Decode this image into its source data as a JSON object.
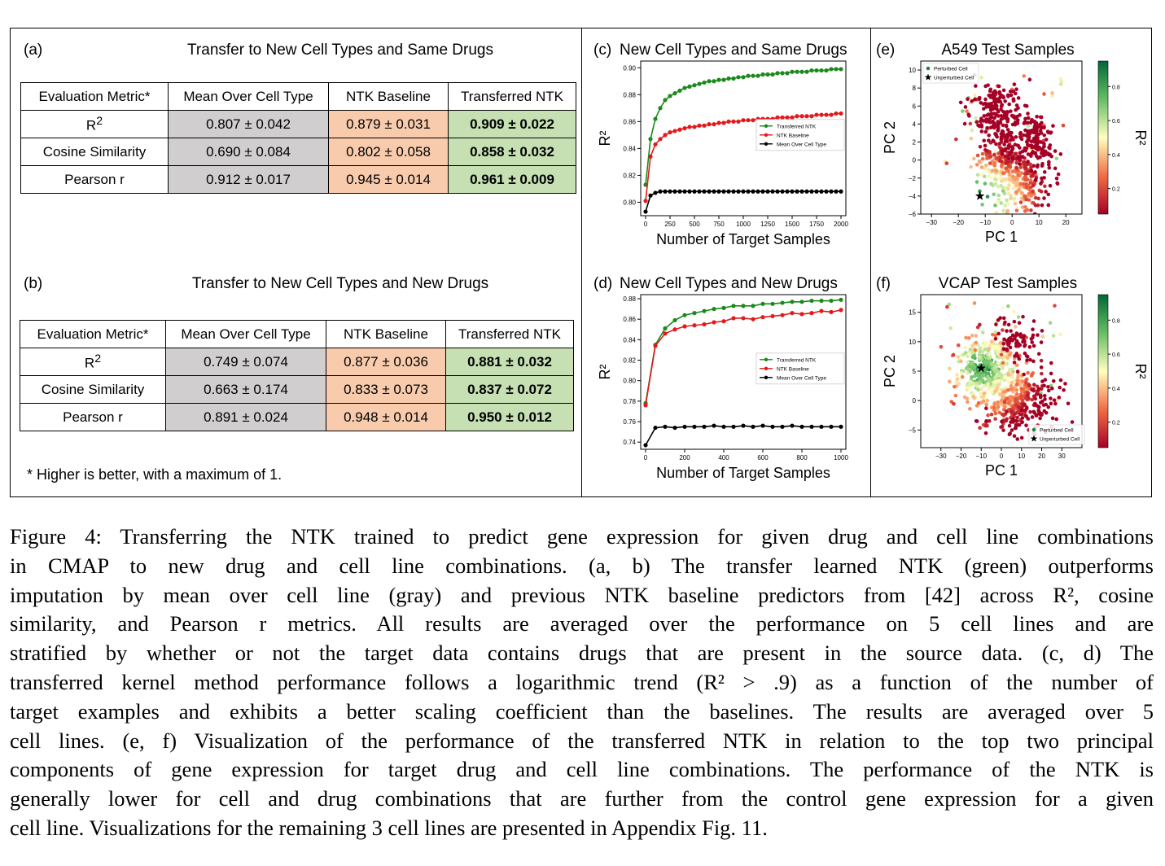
{
  "panels": {
    "a": {
      "label": "(a)",
      "title": "Transfer to New Cell Types and Same Drugs",
      "headers": [
        "Evaluation Metric*",
        "Mean Over Cell Type",
        "NTK Baseline",
        "Transferred NTK"
      ],
      "rows": [
        {
          "metric": "R",
          "sup": "2",
          "mean": "0.807 ± 0.042",
          "baseline": "0.879 ± 0.031",
          "transferred": "0.909 ± 0.022"
        },
        {
          "metric": "Cosine Similarity",
          "sup": "",
          "mean": "0.690 ± 0.084",
          "baseline": "0.802 ± 0.058",
          "transferred": "0.858 ± 0.032"
        },
        {
          "metric": "Pearson r",
          "sup": "",
          "mean": "0.912 ± 0.017",
          "baseline": "0.945 ± 0.014",
          "transferred": "0.961 ± 0.009"
        }
      ]
    },
    "b": {
      "label": "(b)",
      "title": "Transfer to New Cell Types and New Drugs",
      "headers": [
        "Evaluation Metric*",
        "Mean Over Cell Type",
        "NTK Baseline",
        "Transferred NTK"
      ],
      "rows": [
        {
          "metric": "R",
          "sup": "2",
          "mean": "0.749 ± 0.074",
          "baseline": "0.877 ± 0.036",
          "transferred": "0.881 ± 0.032"
        },
        {
          "metric": "Cosine Similarity",
          "sup": "",
          "mean": "0.663 ± 0.174",
          "baseline": "0.833 ± 0.073",
          "transferred": "0.837 ± 0.072"
        },
        {
          "metric": "Pearson r",
          "sup": "",
          "mean": "0.891 ± 0.024",
          "baseline": "0.948 ± 0.014",
          "transferred": "0.950 ± 0.012"
        }
      ],
      "footnote": "* Higher is better, with a maximum of 1."
    },
    "c": {
      "label": "(c)",
      "title": "New Cell Types and Same Drugs"
    },
    "d": {
      "label": "(d)",
      "title": "New Cell Types and New Drugs"
    },
    "e": {
      "label": "(e)",
      "title": "A549 Test Samples"
    },
    "f": {
      "label": "(f)",
      "title": "VCAP Test Samples"
    }
  },
  "colors": {
    "gray_cell": "#d0cece",
    "orange_cell": "#f8cbad",
    "green_cell": "#c6e0b4",
    "transferred_line": "#1a8a1a",
    "baseline_line": "#e31a1c",
    "mean_line": "#000000"
  },
  "chart_data": [
    {
      "id": "c",
      "type": "line",
      "xlabel": "Number of Target Samples",
      "ylabel": "R²",
      "xlim": [
        -50,
        2050
      ],
      "ylim": [
        0.79,
        0.905
      ],
      "xticks": [
        0,
        250,
        500,
        750,
        1000,
        1250,
        1500,
        1750,
        2000
      ],
      "yticks": [
        0.8,
        0.82,
        0.84,
        0.86,
        0.88,
        0.9
      ],
      "ytick_labels": [
        "0.80",
        "0.82",
        "0.84",
        "0.86",
        "0.88",
        "0.90"
      ],
      "legend": "right",
      "series": [
        {
          "name": "Transferred NTK",
          "color": "#1a8a1a",
          "x": [
            0,
            50,
            100,
            150,
            200,
            250,
            300,
            350,
            400,
            450,
            500,
            550,
            600,
            650,
            700,
            750,
            800,
            850,
            900,
            950,
            1000,
            1050,
            1100,
            1150,
            1200,
            1250,
            1300,
            1350,
            1400,
            1450,
            1500,
            1550,
            1600,
            1650,
            1700,
            1750,
            1800,
            1850,
            1900,
            1950,
            2000
          ],
          "y": [
            0.813,
            0.847,
            0.862,
            0.87,
            0.876,
            0.879,
            0.881,
            0.883,
            0.885,
            0.886,
            0.887,
            0.888,
            0.889,
            0.89,
            0.89,
            0.891,
            0.891,
            0.892,
            0.892,
            0.893,
            0.893,
            0.894,
            0.894,
            0.894,
            0.895,
            0.895,
            0.895,
            0.896,
            0.896,
            0.896,
            0.897,
            0.897,
            0.897,
            0.897,
            0.898,
            0.898,
            0.898,
            0.898,
            0.899,
            0.899,
            0.899
          ]
        },
        {
          "name": "NTK Baseline",
          "color": "#e31a1c",
          "x": [
            0,
            50,
            100,
            150,
            200,
            250,
            300,
            350,
            400,
            450,
            500,
            550,
            600,
            650,
            700,
            750,
            800,
            850,
            900,
            950,
            1000,
            1050,
            1100,
            1150,
            1200,
            1250,
            1300,
            1350,
            1400,
            1450,
            1500,
            1550,
            1600,
            1650,
            1700,
            1750,
            1800,
            1850,
            1900,
            1950,
            2000
          ],
          "y": [
            0.801,
            0.834,
            0.843,
            0.847,
            0.85,
            0.852,
            0.853,
            0.854,
            0.855,
            0.856,
            0.856,
            0.857,
            0.857,
            0.858,
            0.858,
            0.859,
            0.859,
            0.86,
            0.86,
            0.86,
            0.861,
            0.861,
            0.861,
            0.862,
            0.862,
            0.862,
            0.862,
            0.863,
            0.863,
            0.863,
            0.863,
            0.864,
            0.864,
            0.864,
            0.864,
            0.865,
            0.865,
            0.865,
            0.865,
            0.866,
            0.866
          ]
        },
        {
          "name": "Mean Over Cell Type",
          "color": "#000000",
          "x": [
            0,
            50,
            100,
            150,
            200,
            250,
            300,
            350,
            400,
            450,
            500,
            550,
            600,
            650,
            700,
            750,
            800,
            850,
            900,
            950,
            1000,
            1050,
            1100,
            1150,
            1200,
            1250,
            1300,
            1350,
            1400,
            1450,
            1500,
            1550,
            1600,
            1650,
            1700,
            1750,
            1800,
            1850,
            1900,
            1950,
            2000
          ],
          "y": [
            0.793,
            0.805,
            0.807,
            0.808,
            0.808,
            0.808,
            0.808,
            0.808,
            0.808,
            0.808,
            0.808,
            0.808,
            0.808,
            0.808,
            0.808,
            0.808,
            0.808,
            0.808,
            0.808,
            0.808,
            0.808,
            0.808,
            0.808,
            0.808,
            0.808,
            0.808,
            0.808,
            0.808,
            0.808,
            0.808,
            0.808,
            0.808,
            0.808,
            0.808,
            0.808,
            0.808,
            0.808,
            0.808,
            0.808,
            0.808,
            0.808
          ]
        }
      ]
    },
    {
      "id": "d",
      "type": "line",
      "xlabel": "Number of Target Samples",
      "ylabel": "R²",
      "xlim": [
        -25,
        1025
      ],
      "ylim": [
        0.733,
        0.884
      ],
      "xticks": [
        0,
        200,
        400,
        600,
        800,
        1000
      ],
      "yticks": [
        0.74,
        0.76,
        0.78,
        0.8,
        0.82,
        0.84,
        0.86,
        0.88
      ],
      "ytick_labels": [
        "0.74",
        "0.76",
        "0.78",
        "0.80",
        "0.82",
        "0.84",
        "0.86",
        "0.88"
      ],
      "legend": "right",
      "series": [
        {
          "name": "Transferred NTK",
          "color": "#1a8a1a",
          "x": [
            0,
            50,
            100,
            150,
            200,
            250,
            300,
            350,
            400,
            450,
            500,
            550,
            600,
            650,
            700,
            750,
            800,
            850,
            900,
            950,
            1000
          ],
          "y": [
            0.778,
            0.835,
            0.851,
            0.859,
            0.864,
            0.866,
            0.868,
            0.87,
            0.871,
            0.873,
            0.873,
            0.873,
            0.875,
            0.875,
            0.876,
            0.877,
            0.877,
            0.878,
            0.878,
            0.878,
            0.879
          ]
        },
        {
          "name": "NTK Baseline",
          "color": "#e31a1c",
          "x": [
            0,
            50,
            100,
            150,
            200,
            250,
            300,
            350,
            400,
            450,
            500,
            550,
            600,
            650,
            700,
            750,
            800,
            850,
            900,
            950,
            1000
          ],
          "y": [
            0.776,
            0.834,
            0.846,
            0.85,
            0.853,
            0.854,
            0.855,
            0.857,
            0.858,
            0.861,
            0.861,
            0.86,
            0.862,
            0.863,
            0.864,
            0.866,
            0.865,
            0.866,
            0.868,
            0.867,
            0.869
          ]
        },
        {
          "name": "Mean Over Cell Type",
          "color": "#000000",
          "x": [
            0,
            50,
            100,
            150,
            200,
            250,
            300,
            350,
            400,
            450,
            500,
            550,
            600,
            650,
            700,
            750,
            800,
            850,
            900,
            950,
            1000
          ],
          "y": [
            0.737,
            0.754,
            0.755,
            0.754,
            0.755,
            0.755,
            0.755,
            0.756,
            0.755,
            0.755,
            0.756,
            0.755,
            0.756,
            0.755,
            0.755,
            0.756,
            0.755,
            0.755,
            0.755,
            0.755,
            0.755
          ]
        }
      ]
    },
    {
      "id": "e",
      "type": "scatter",
      "xlabel": "PC 1",
      "ylabel": "PC 2",
      "colorbar_label": "R²",
      "xlim": [
        -34,
        26
      ],
      "ylim": [
        -6,
        11
      ],
      "xticks": [
        -30,
        -20,
        -10,
        0,
        10,
        20
      ],
      "yticks": [
        -6,
        -4,
        -2,
        0,
        2,
        4,
        6,
        8,
        10
      ],
      "colorbar_ticks": [
        0.2,
        0.4,
        0.6,
        0.8
      ],
      "legend_entries": [
        "Perturbed Cell",
        "Unperturbed Cell"
      ],
      "legend": "top-left",
      "unperturbed_point": [
        -12,
        -4
      ]
    },
    {
      "id": "f",
      "type": "scatter",
      "xlabel": "PC 1",
      "ylabel": "PC 2",
      "colorbar_label": "R²",
      "xlim": [
        -40,
        40
      ],
      "ylim": [
        -8,
        18
      ],
      "xticks": [
        -30,
        -20,
        -10,
        0,
        10,
        20,
        30
      ],
      "yticks": [
        -5,
        0,
        5,
        10,
        15
      ],
      "colorbar_ticks": [
        0.2,
        0.4,
        0.6,
        0.8
      ],
      "legend_entries": [
        "Perturbed Cell",
        "Unperturbed Cell"
      ],
      "legend": "bottom-right",
      "unperturbed_point": [
        -10,
        5.5
      ]
    }
  ],
  "caption": {
    "lines": [
      "Figure 4: Transferring the NTK trained to predict gene expression for given drug and cell line combinations",
      "in CMAP to new drug and cell line combinations. (a, b) The transfer learned NTK (green) outperforms",
      "imputation by mean over cell line (gray) and previous NTK baseline predictors from [42] across R², cosine",
      "similarity, and Pearson r metrics. All results are averaged over the performance on 5 cell lines and are",
      "stratified by whether or not the target data contains drugs that are present in the source data. (c, d) The",
      "transferred kernel method performance follows a logarithmic trend (R² > .9) as a function of the number of",
      "target examples and exhibits a better scaling coefficient than the baselines. The results are averaged over 5",
      "cell lines. (e, f) Visualization of the performance of the transferred NTK in relation to the top two principal",
      "components of gene expression for target drug and cell line combinations. The performance of the NTK is",
      "generally lower for cell and drug combinations that are further from the control gene expression for a given",
      "cell line. Visualizations for the remaining 3 cell lines are presented in Appendix Fig. 11."
    ]
  }
}
